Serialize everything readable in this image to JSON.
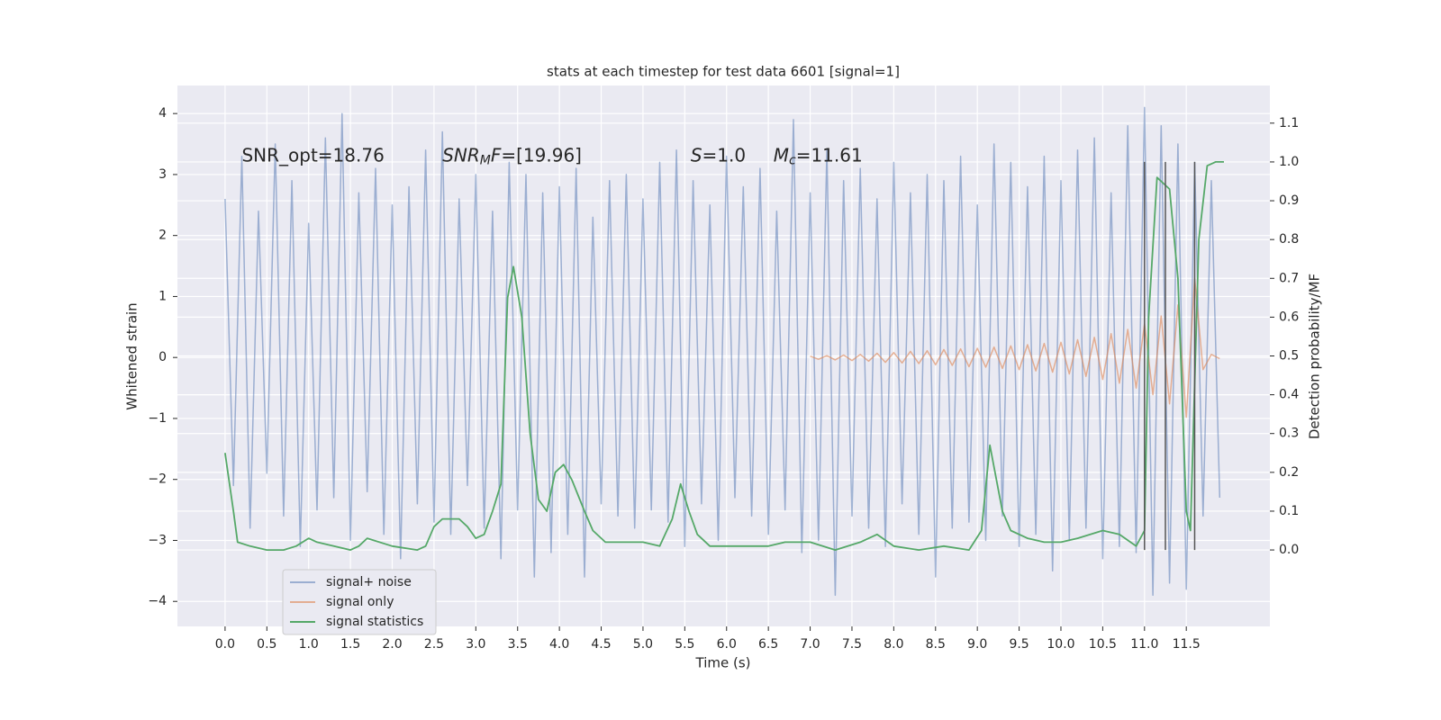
{
  "chart_data": {
    "type": "line",
    "title": "stats at each timestep for test data 6601 [signal=1]",
    "x_label": "Time (s)",
    "y_label": "Whitened strain",
    "y2_label": "Detection probability/MF",
    "xlim": [
      -0.57,
      12.5
    ],
    "ylim": [
      -4.41,
      4.46
    ],
    "y2lim": [
      -0.197,
      1.197
    ],
    "xticks": [
      {
        "value": 0,
        "label": "0.0"
      },
      0.5,
      {
        "value": 1,
        "label": "1.0"
      },
      1.5,
      {
        "value": 2,
        "label": "2.0"
      },
      2.5,
      {
        "value": 3,
        "label": "3.0"
      },
      3.5,
      {
        "value": 4,
        "label": "4.0"
      },
      4.5,
      {
        "value": 5,
        "label": "5.0"
      },
      5.5,
      {
        "value": 6,
        "label": "6.0"
      },
      6.5,
      {
        "value": 7,
        "label": "7.0"
      },
      7.5,
      {
        "value": 8,
        "label": "8.0"
      },
      8.5,
      {
        "value": 9,
        "label": "9.0"
      },
      9.5,
      {
        "value": 10,
        "label": "10.0"
      },
      10.5,
      {
        "value": 11,
        "label": "11.0"
      },
      11.5
    ],
    "yticks": [
      {
        "value": -4,
        "label": "−4"
      },
      {
        "value": -3,
        "label": "−3"
      },
      {
        "value": -2,
        "label": "−2"
      },
      {
        "value": -1,
        "label": "−1"
      },
      0,
      1,
      2,
      3,
      4
    ],
    "y2ticks": [
      {
        "value": 0,
        "label": "0.0"
      },
      0.1,
      0.2,
      0.3,
      0.4,
      0.5,
      0.6,
      0.7,
      0.8,
      0.9,
      {
        "value": 1,
        "label": "1.0"
      },
      1.1
    ],
    "grid": true,
    "legend": "lower left",
    "series": [
      {
        "name": "signal+ noise",
        "color": "#4c72b0",
        "opacity": 0.5,
        "x": [
          0,
          0.1,
          0.2,
          0.3,
          0.4,
          0.5,
          0.6,
          0.7,
          0.8,
          0.9,
          1,
          1.1,
          1.2,
          1.3,
          1.4,
          1.5,
          1.6,
          1.7,
          1.8,
          1.9,
          2,
          2.1,
          2.2,
          2.3,
          2.4,
          2.5,
          2.6,
          2.7,
          2.8,
          2.9,
          3,
          3.1,
          3.2,
          3.3,
          3.4,
          3.5,
          3.6,
          3.7,
          3.8,
          3.9,
          4,
          4.1,
          4.2,
          4.3,
          4.4,
          4.5,
          4.6,
          4.7,
          4.8,
          4.9,
          5,
          5.1,
          5.2,
          5.3,
          5.4,
          5.5,
          5.6,
          5.7,
          5.8,
          5.9,
          6,
          6.1,
          6.2,
          6.3,
          6.4,
          6.5,
          6.6,
          6.7,
          6.8,
          6.9,
          7,
          7.1,
          7.2,
          7.3,
          7.4,
          7.5,
          7.6,
          7.7,
          7.8,
          7.9,
          8,
          8.1,
          8.2,
          8.3,
          8.4,
          8.5,
          8.6,
          8.7,
          8.8,
          8.9,
          9,
          9.1,
          9.2,
          9.3,
          9.4,
          9.5,
          9.6,
          9.7,
          9.8,
          9.9,
          10,
          10.1,
          10.2,
          10.3,
          10.4,
          10.5,
          10.6,
          10.7,
          10.8,
          10.9,
          11,
          11.1,
          11.2,
          11.3,
          11.4,
          11.5,
          11.6,
          11.7,
          11.8,
          11.9
        ],
        "values": [
          2.6,
          -2.1,
          3.3,
          -2.8,
          2.4,
          -1.9,
          3.5,
          -2.6,
          2.9,
          -3.1,
          2.2,
          -2.5,
          3.6,
          -2.3,
          4.0,
          -3.0,
          2.7,
          -2.2,
          3.1,
          -2.9,
          2.5,
          -3.3,
          2.8,
          -2.4,
          3.4,
          -2.7,
          3.7,
          -2.9,
          2.6,
          -2.1,
          3.0,
          -2.8,
          2.4,
          -3.3,
          3.2,
          -2.5,
          3.0,
          -3.6,
          2.7,
          -3.2,
          2.8,
          -2.9,
          3.1,
          -3.6,
          2.3,
          -2.4,
          2.9,
          -2.6,
          3.0,
          -2.8,
          2.6,
          -2.5,
          3.2,
          -2.7,
          3.4,
          -3.1,
          2.9,
          -2.4,
          2.5,
          -3.0,
          3.3,
          -2.3,
          2.8,
          -2.6,
          3.1,
          -2.9,
          2.4,
          -2.5,
          3.9,
          -3.2,
          2.7,
          -3.0,
          3.4,
          -3.9,
          2.9,
          -2.6,
          3.1,
          -2.8,
          2.6,
          -3.1,
          3.2,
          -2.4,
          2.7,
          -2.9,
          3.0,
          -3.6,
          2.9,
          -2.8,
          3.3,
          -2.7,
          2.5,
          -3.0,
          3.5,
          -2.6,
          3.2,
          -3.1,
          2.8,
          -2.9,
          3.3,
          -3.5,
          2.9,
          -3.0,
          3.4,
          -2.8,
          3.6,
          -3.3,
          2.7,
          -3.1,
          3.8,
          -3.2,
          4.1,
          -3.9,
          3.8,
          -3.7,
          3.5,
          -3.8,
          3.2,
          -2.6,
          2.9,
          -2.3
        ]
      },
      {
        "name": "signal only",
        "color": "#dd8452",
        "opacity": 0.6,
        "x": [
          7,
          7.1,
          7.2,
          7.3,
          7.4,
          7.5,
          7.6,
          7.7,
          7.8,
          7.9,
          8,
          8.1,
          8.2,
          8.3,
          8.4,
          8.5,
          8.6,
          8.7,
          8.8,
          8.9,
          9,
          9.1,
          9.2,
          9.3,
          9.4,
          9.5,
          9.6,
          9.7,
          9.8,
          9.9,
          10,
          10.1,
          10.2,
          10.3,
          10.4,
          10.5,
          10.6,
          10.7,
          10.8,
          10.9,
          11,
          11.1,
          11.2,
          11.3,
          11.4,
          11.5,
          11.6,
          11.7,
          11.8,
          11.9
        ],
        "values": [
          0.02,
          -0.03,
          0.03,
          -0.04,
          0.04,
          -0.05,
          0.05,
          -0.06,
          0.07,
          -0.08,
          0.08,
          -0.09,
          0.1,
          -0.1,
          0.11,
          -0.12,
          0.13,
          -0.13,
          0.14,
          -0.15,
          0.15,
          -0.16,
          0.17,
          -0.18,
          0.19,
          -0.2,
          0.21,
          -0.22,
          0.23,
          -0.24,
          0.25,
          -0.27,
          0.29,
          -0.31,
          0.33,
          -0.36,
          0.39,
          -0.42,
          0.46,
          -0.5,
          0.55,
          -0.61,
          0.68,
          -0.76,
          0.86,
          -0.98,
          1.3,
          -0.2,
          0.05,
          -0.02
        ]
      },
      {
        "name": "signal statistics",
        "color": "#55a868",
        "axis": "y2",
        "x": [
          0,
          0.1,
          0.15,
          0.3,
          0.5,
          0.7,
          0.85,
          1,
          1.1,
          1.3,
          1.5,
          1.6,
          1.7,
          2,
          2.3,
          2.4,
          2.5,
          2.6,
          2.8,
          2.9,
          3,
          3.1,
          3.2,
          3.3,
          3.38,
          3.45,
          3.55,
          3.65,
          3.75,
          3.85,
          3.95,
          4.05,
          4.15,
          4.3,
          4.4,
          4.55,
          4.8,
          5,
          5.2,
          5.35,
          5.45,
          5.55,
          5.65,
          5.8,
          6,
          6.3,
          6.5,
          6.7,
          7,
          7.3,
          7.6,
          7.8,
          8,
          8.3,
          8.6,
          8.9,
          9.05,
          9.15,
          9.3,
          9.4,
          9.6,
          9.8,
          10,
          10.2,
          10.5,
          10.7,
          10.9,
          11,
          11.05,
          11.15,
          11.3,
          11.4,
          11.5,
          11.55,
          11.65,
          11.75,
          11.85,
          11.95
        ],
        "values": [
          0.25,
          0.1,
          0.02,
          0.01,
          0,
          0,
          0.01,
          0.03,
          0.02,
          0.01,
          0,
          0.01,
          0.03,
          0.01,
          0,
          0.01,
          0.06,
          0.08,
          0.08,
          0.06,
          0.03,
          0.04,
          0.1,
          0.17,
          0.65,
          0.73,
          0.6,
          0.3,
          0.13,
          0.1,
          0.2,
          0.22,
          0.18,
          0.1,
          0.05,
          0.02,
          0.02,
          0.02,
          0.01,
          0.08,
          0.17,
          0.1,
          0.04,
          0.01,
          0.01,
          0.01,
          0.01,
          0.02,
          0.02,
          0,
          0.02,
          0.04,
          0.01,
          0,
          0.01,
          0,
          0.05,
          0.27,
          0.1,
          0.05,
          0.03,
          0.02,
          0.02,
          0.03,
          0.05,
          0.04,
          0.01,
          0.05,
          0.6,
          0.96,
          0.93,
          0.7,
          0.1,
          0.05,
          0.8,
          0.99,
          1,
          1
        ]
      }
    ],
    "vlines": {
      "x": [
        11.0,
        11.25,
        11.6
      ],
      "y2": [
        0,
        1
      ],
      "color": "#555555"
    },
    "annotations": [
      {
        "x": 0.2,
        "y": 3.3,
        "parts": [
          {
            "text": "SNR_opt=18.76"
          }
        ]
      },
      {
        "x": 2.6,
        "y": 3.3,
        "parts": [
          {
            "text": "SNR",
            "italic": true
          },
          {
            "text": "M",
            "italic": true,
            "sub": true
          },
          {
            "text": "F",
            "italic": true
          },
          {
            "text": "=[19.96]"
          }
        ]
      },
      {
        "x": 5.57,
        "y": 3.3,
        "parts": [
          {
            "text": "S",
            "italic": true
          },
          {
            "text": "=1.0"
          }
        ]
      },
      {
        "x": 6.56,
        "y": 3.3,
        "parts": [
          {
            "text": "M",
            "italic": true
          },
          {
            "text": "c",
            "italic": true,
            "sub": true
          },
          {
            "text": "=11.61"
          }
        ]
      }
    ]
  }
}
